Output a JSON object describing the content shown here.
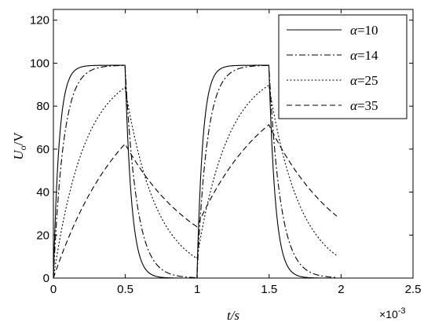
{
  "chart_data": {
    "type": "line",
    "xlabel": "t/s",
    "ylabel": "U",
    "ylabel_sub": "o",
    "ylabel_unit": "/V",
    "x_exponent": "×10",
    "x_exponent_power": "-3",
    "xlim": [
      0,
      2.5
    ],
    "ylim": [
      0,
      125
    ],
    "x_ticks": [
      0,
      0.5,
      1,
      1.5,
      2,
      2.5
    ],
    "x_tick_labels": [
      "0",
      "0.5",
      "1",
      "1.5",
      "2",
      "2.5"
    ],
    "y_ticks": [
      0,
      20,
      40,
      60,
      80,
      100,
      120
    ],
    "y_tick_labels": [
      "0",
      "20",
      "40",
      "60",
      "80",
      "100",
      "120"
    ],
    "grid": false,
    "legend_position": "top-right",
    "legend": [
      {
        "symbol": "α",
        "value": "=10"
      },
      {
        "symbol": "α",
        "value": "=14"
      },
      {
        "symbol": "α",
        "value": "=25"
      },
      {
        "symbol": "α",
        "value": "=35"
      }
    ],
    "square_wave": {
      "period": 1.0,
      "on_duration": 0.5,
      "t_end": 1.97
    },
    "series": [
      {
        "alpha": 10,
        "level_high": 99,
        "tau_rise": 0.04,
        "tau_fall": 0.045,
        "style": "solid"
      },
      {
        "alpha": 14,
        "level_high": 99,
        "tau_rise": 0.07,
        "tau_fall": 0.08,
        "style": "dashdot"
      },
      {
        "alpha": 25,
        "level_high": 99,
        "tau_rise": 0.22,
        "tau_fall": 0.22,
        "style": "dotted"
      },
      {
        "alpha": 35,
        "level_high": 99,
        "tau_rise": 0.5,
        "tau_fall": 0.52,
        "style": "dashed"
      }
    ]
  }
}
